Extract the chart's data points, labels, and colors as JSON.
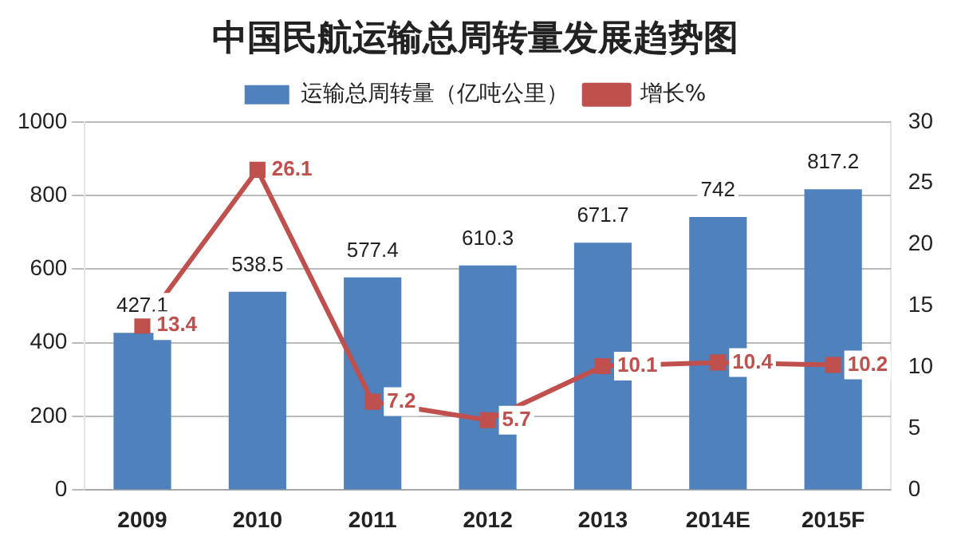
{
  "chart_data": {
    "type": "bar",
    "title": "中国民航运输总周转量发展趋势图",
    "categories": [
      "2009",
      "2010",
      "2011",
      "2012",
      "2013",
      "2014E",
      "2015F"
    ],
    "series": [
      {
        "name": "运输总周转量（亿吨公里）",
        "color": "#4f81bd",
        "values": [
          427.1,
          538.5,
          577.4,
          610.3,
          671.7,
          742,
          817.2
        ]
      },
      {
        "name": "增长%",
        "type": "line",
        "axis": "y2",
        "color": "#c0504d",
        "marker": "square",
        "values": [
          13.4,
          26.1,
          7.2,
          5.7,
          10.1,
          10.4,
          10.2
        ]
      }
    ],
    "ylim": [
      0,
      1000
    ],
    "yticks": [
      0,
      200,
      400,
      600,
      800,
      1000
    ],
    "y2lim": [
      0,
      30
    ],
    "y2ticks": [
      0,
      5,
      10,
      15,
      20,
      25,
      30
    ],
    "grid": "y",
    "legend": "top",
    "data_labels": true
  }
}
